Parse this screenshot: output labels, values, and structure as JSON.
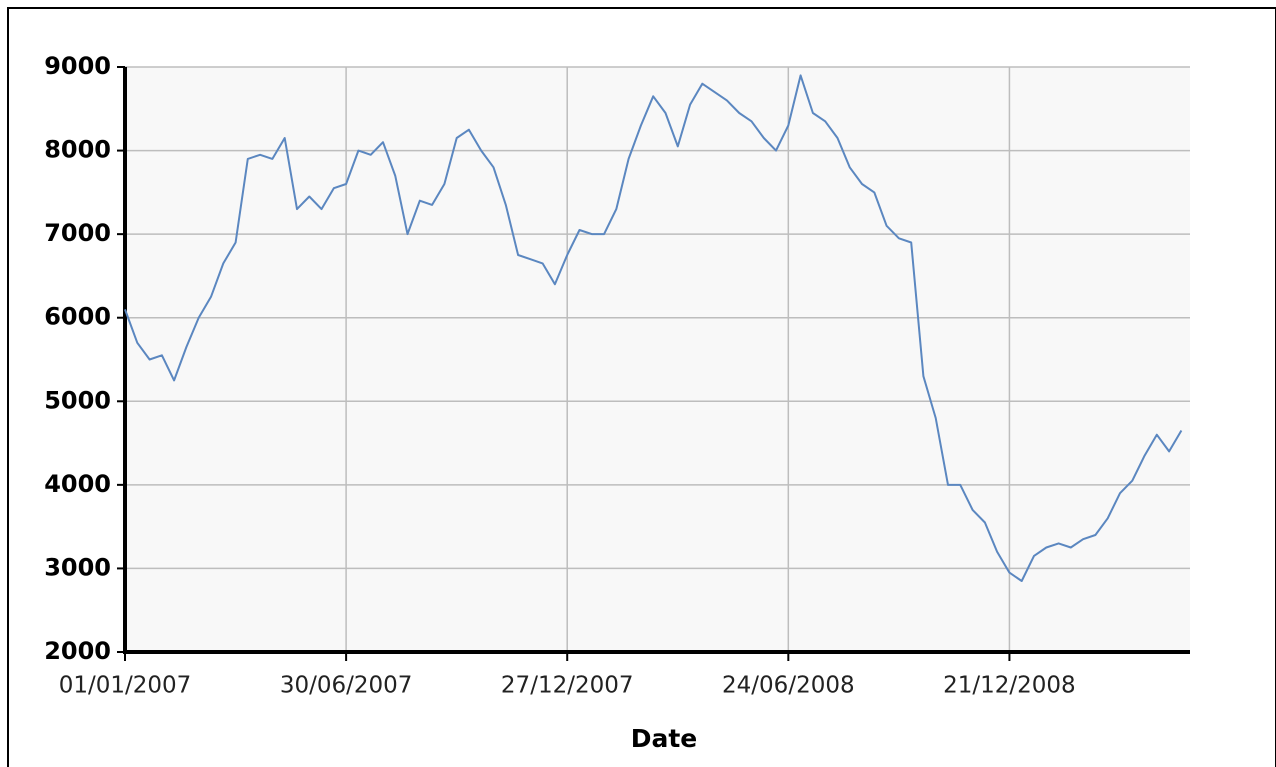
{
  "chart_data": {
    "type": "line",
    "x_label": "Date",
    "x": [
      "01/01/2007",
      "11/01/2007",
      "21/01/2007",
      "31/01/2007",
      "10/02/2007",
      "20/02/2007",
      "02/03/2007",
      "12/03/2007",
      "22/03/2007",
      "01/04/2007",
      "11/04/2007",
      "21/04/2007",
      "01/05/2007",
      "11/05/2007",
      "21/05/2007",
      "31/05/2007",
      "10/06/2007",
      "20/06/2007",
      "30/06/2007",
      "10/07/2007",
      "20/07/2007",
      "30/07/2007",
      "09/08/2007",
      "19/08/2007",
      "29/08/2007",
      "08/09/2007",
      "18/09/2007",
      "28/09/2007",
      "08/10/2007",
      "18/10/2007",
      "28/10/2007",
      "07/11/2007",
      "17/11/2007",
      "27/11/2007",
      "07/12/2007",
      "17/12/2007",
      "27/12/2007",
      "06/01/2008",
      "16/01/2008",
      "26/01/2008",
      "05/02/2008",
      "15/02/2008",
      "25/02/2008",
      "06/03/2008",
      "16/03/2008",
      "26/03/2008",
      "05/04/2008",
      "15/04/2008",
      "25/04/2008",
      "05/05/2008",
      "15/05/2008",
      "25/05/2008",
      "04/06/2008",
      "14/06/2008",
      "24/06/2008",
      "04/07/2008",
      "14/07/2008",
      "24/07/2008",
      "03/08/2008",
      "13/08/2008",
      "23/08/2008",
      "02/09/2008",
      "12/09/2008",
      "22/09/2008",
      "02/10/2008",
      "12/10/2008",
      "22/10/2008",
      "01/11/2008",
      "11/11/2008",
      "21/11/2008",
      "01/12/2008",
      "11/12/2008",
      "21/12/2008",
      "31/12/2008",
      "10/01/2009",
      "20/01/2009",
      "30/01/2009",
      "09/02/2009",
      "19/02/2009",
      "01/03/2009",
      "11/03/2009",
      "21/03/2009",
      "31/03/2009",
      "10/04/2009",
      "20/04/2009",
      "30/04/2009",
      "10/05/2009"
    ],
    "series": [
      {
        "color": "#5b87c0",
        "values": [
          6100,
          5700,
          5500,
          5550,
          5250,
          5650,
          6000,
          6250,
          6650,
          6900,
          7900,
          7950,
          7900,
          8150,
          7300,
          7450,
          7300,
          7550,
          7600,
          8000,
          7950,
          8100,
          7700,
          7000,
          7400,
          7350,
          7600,
          8150,
          8250,
          8000,
          7800,
          7350,
          6750,
          6700,
          6650,
          6400,
          6750,
          7050,
          7000,
          7000,
          7300,
          7900,
          8300,
          8650,
          8450,
          8050,
          8550,
          8800,
          8700,
          8600,
          8450,
          8350,
          8150,
          8000,
          8300,
          8900,
          8450,
          8350,
          8150,
          7800,
          7600,
          7500,
          7100,
          6950,
          6900,
          5300,
          4800,
          4000,
          4000,
          3700,
          3550,
          3200,
          2950,
          2850,
          3150,
          3250,
          3300,
          3250,
          3350,
          3400,
          3600,
          3900,
          4050,
          4350,
          4600,
          4400,
          4650
        ]
      }
    ],
    "xlim": [
      "01/01/2007",
      "17/05/2009"
    ],
    "xticks": [
      "01/01/2007",
      "30/06/2007",
      "27/12/2007",
      "24/06/2008",
      "21/12/2008"
    ],
    "ylim": [
      2000,
      9000
    ],
    "yticks": [
      2000,
      3000,
      4000,
      5000,
      6000,
      7000,
      8000,
      9000
    ],
    "grid": true
  }
}
